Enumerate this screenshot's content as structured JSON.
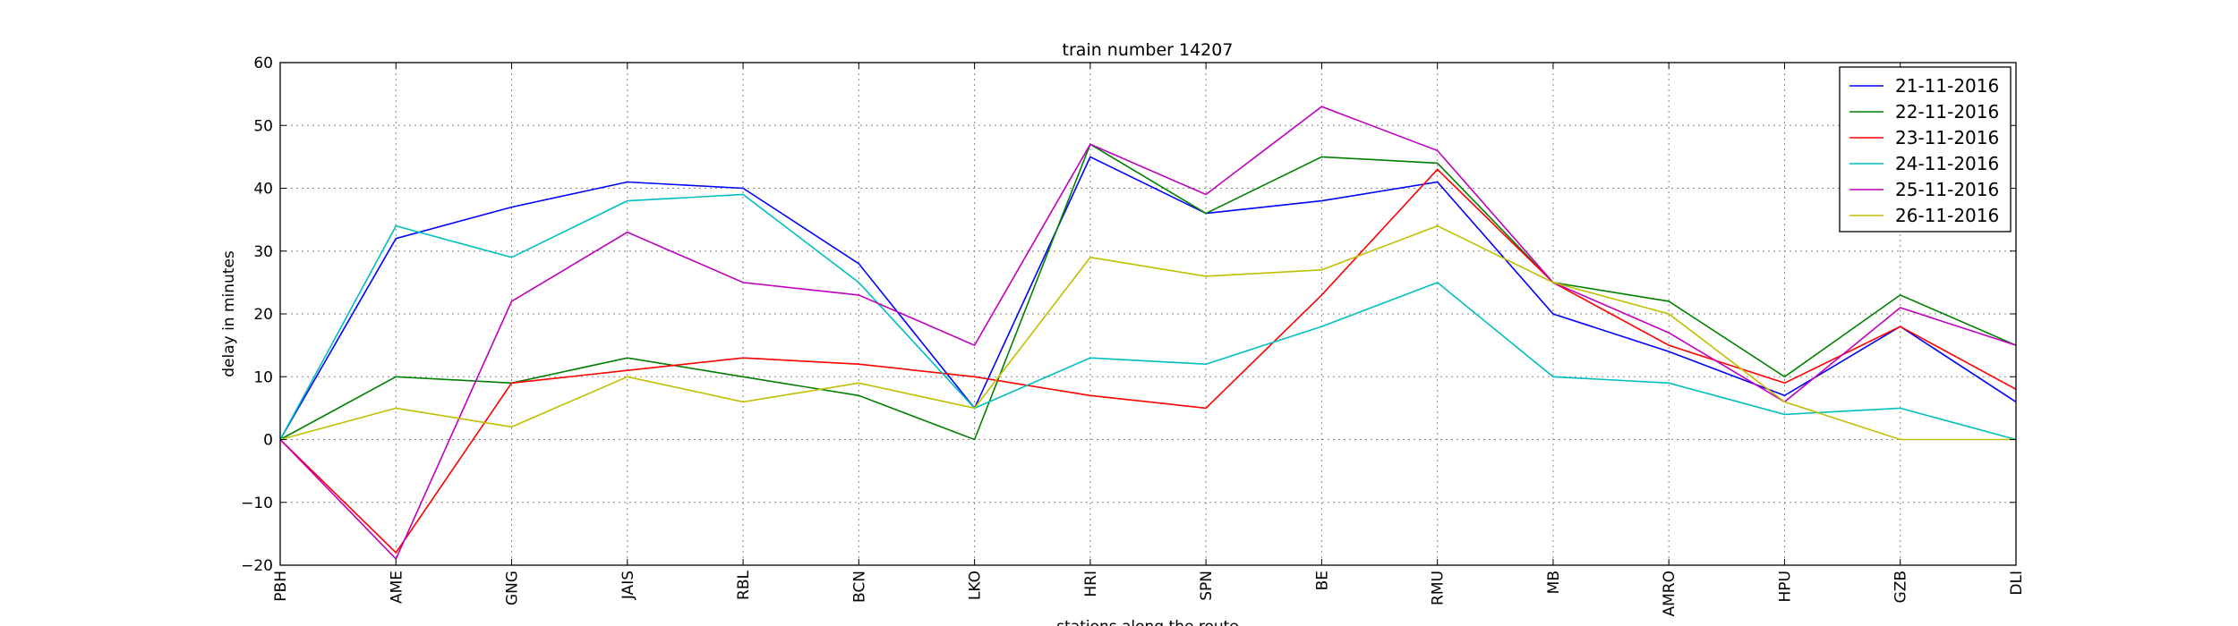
{
  "chart_data": {
    "type": "line",
    "title": "train number 14207",
    "xlabel": "stations along the route",
    "ylabel": "delay in minutes",
    "ylim": [
      -20,
      60
    ],
    "yticks": [
      -20,
      -10,
      0,
      10,
      20,
      30,
      40,
      50,
      60
    ],
    "ytick_labels": [
      "−20",
      "−10",
      "0",
      "10",
      "20",
      "30",
      "40",
      "50",
      "60"
    ],
    "grid": true,
    "legend_position": "top-right",
    "categories": [
      "PBH",
      "AME",
      "GNG",
      "JAIS",
      "RBL",
      "BCN",
      "LKO",
      "HRI",
      "SPN",
      "BE",
      "RMU",
      "MB",
      "AMRO",
      "HPU",
      "GZB",
      "DLI"
    ],
    "series": [
      {
        "name": "21-11-2016",
        "color": "#0000ff",
        "values": [
          0,
          32,
          37,
          41,
          40,
          28,
          5,
          45,
          36,
          38,
          41,
          20,
          14,
          7,
          18,
          6
        ]
      },
      {
        "name": "22-11-2016",
        "color": "#008000",
        "values": [
          0,
          10,
          9,
          13,
          10,
          7,
          0,
          47,
          36,
          45,
          44,
          25,
          22,
          10,
          23,
          15
        ]
      },
      {
        "name": "23-11-2016",
        "color": "#ff0000",
        "values": [
          0,
          -18,
          9,
          11,
          13,
          12,
          10,
          7,
          5,
          23,
          43,
          25,
          15,
          9,
          18,
          8
        ]
      },
      {
        "name": "24-11-2016",
        "color": "#00bfbf",
        "values": [
          0,
          34,
          29,
          38,
          39,
          25,
          5,
          13,
          12,
          18,
          25,
          10,
          9,
          4,
          5,
          0
        ]
      },
      {
        "name": "25-11-2016",
        "color": "#bf00bf",
        "values": [
          0,
          -19,
          22,
          33,
          25,
          23,
          15,
          47,
          39,
          53,
          46,
          25,
          17,
          6,
          21,
          15
        ]
      },
      {
        "name": "26-11-2016",
        "color": "#bfbf00",
        "values": [
          0,
          5,
          2,
          10,
          6,
          9,
          5,
          29,
          26,
          27,
          34,
          25,
          20,
          6,
          0,
          0
        ]
      }
    ]
  }
}
